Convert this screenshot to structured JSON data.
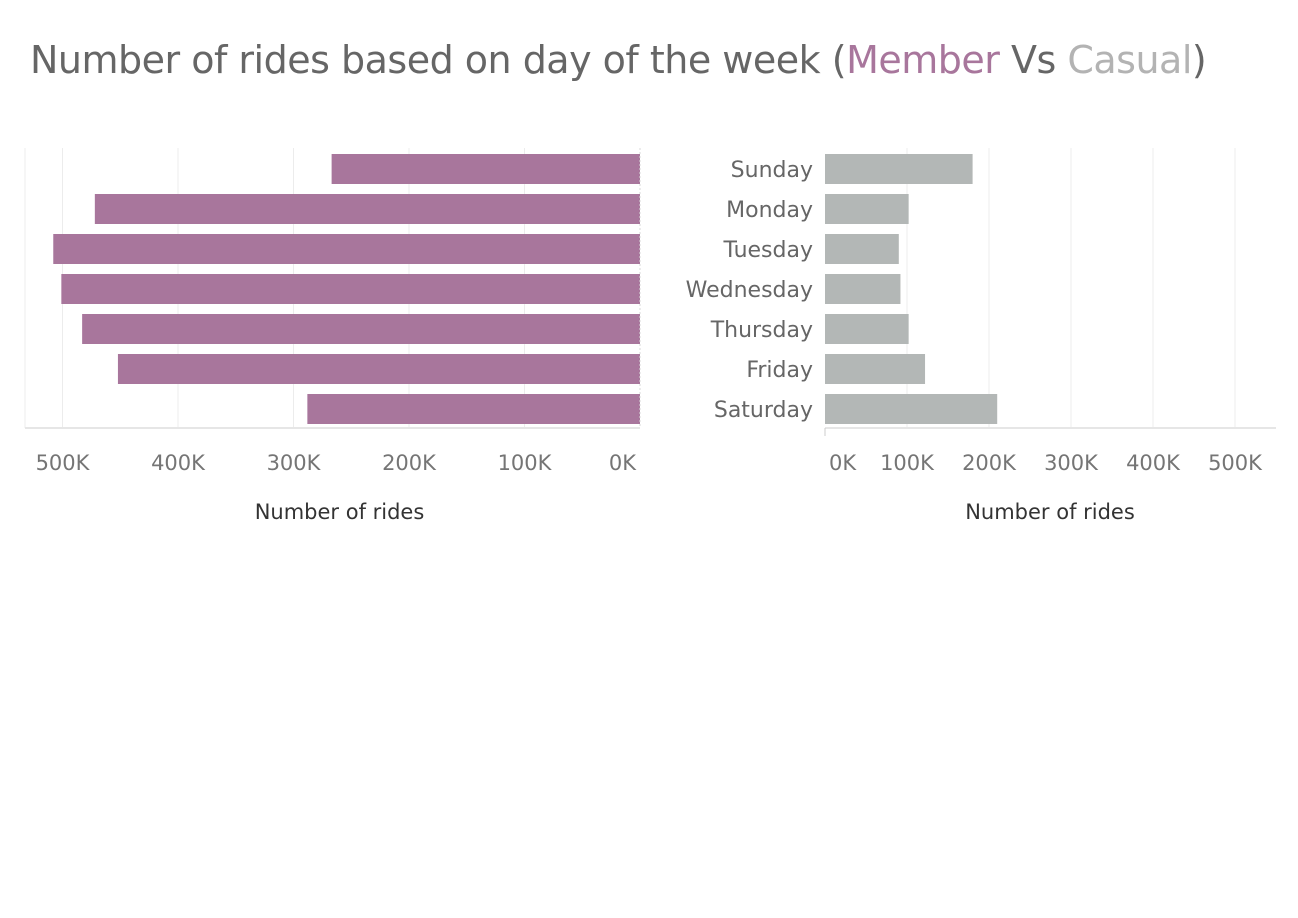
{
  "title": {
    "prefix": "Number of rides based on day of the week (",
    "member": "Member",
    "vs": " Vs ",
    "casual": "Casual",
    "suffix": ")"
  },
  "colors": {
    "member": "#a8769c",
    "casual": "#b3b7b6",
    "title_member": "#a8769c",
    "title_casual": "#b3b3b3"
  },
  "chart_data": [
    {
      "type": "bar",
      "orientation": "horizontal",
      "direction": "reversed",
      "series": [
        {
          "name": "Member",
          "values": [
            267000,
            472000,
            508000,
            501000,
            483000,
            452000,
            288000
          ]
        }
      ],
      "categories": [
        "Sunday",
        "Monday",
        "Tuesday",
        "Wednesday",
        "Thursday",
        "Friday",
        "Saturday"
      ],
      "xlabel": "Number of rides",
      "xticks": [
        "500K",
        "400K",
        "300K",
        "200K",
        "100K",
        "0K"
      ],
      "xlim": [
        0,
        534000
      ],
      "grid": true
    },
    {
      "type": "bar",
      "orientation": "horizontal",
      "series": [
        {
          "name": "Casual",
          "values": [
            180000,
            102000,
            90000,
            92000,
            102000,
            122000,
            210000
          ]
        }
      ],
      "categories": [
        "Sunday",
        "Monday",
        "Tuesday",
        "Wednesday",
        "Thursday",
        "Friday",
        "Saturday"
      ],
      "xlabel": "Number of rides",
      "xticks": [
        "0K",
        "100K",
        "200K",
        "300K",
        "400K",
        "500K"
      ],
      "xlim": [
        0,
        550000
      ],
      "grid": true
    }
  ]
}
